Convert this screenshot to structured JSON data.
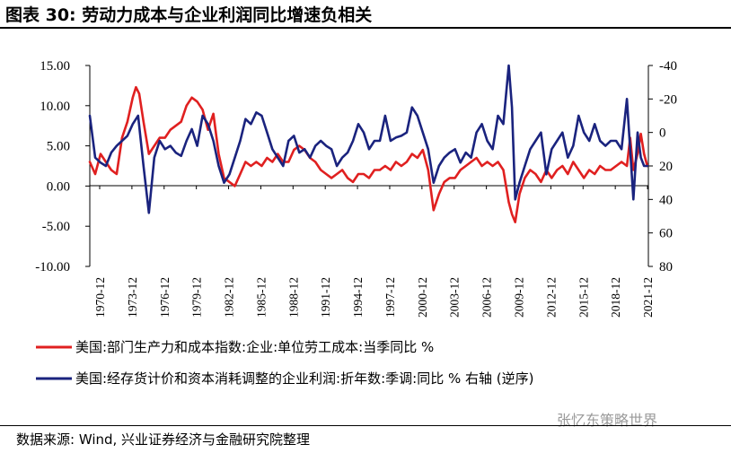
{
  "header": {
    "title": "图表 30: 劳动力成本与企业利润同比增速负相关"
  },
  "footer": {
    "source": "数据来源: Wind, 兴业证券经济与金融研究院整理",
    "watermark": "张忆东策略世界"
  },
  "colors": {
    "series1": "#e02020",
    "series2": "#1a237e",
    "axis": "#000000"
  },
  "chart_data": {
    "type": "line",
    "title": "劳动力成本与企业利润同比增速负相关",
    "left_axis": {
      "range": [
        -10,
        15
      ],
      "ticks": [
        "15.00",
        "10.00",
        "5.00",
        "0.00",
        "-5.00",
        "-10.00"
      ],
      "tick_values": [
        15,
        10,
        5,
        0,
        -5,
        -10
      ]
    },
    "right_axis": {
      "range": [
        80,
        -40
      ],
      "inverted": true,
      "ticks": [
        "-40",
        "-20",
        "0",
        "20",
        "40",
        "60",
        "80"
      ],
      "tick_values": [
        -40,
        -20,
        0,
        20,
        40,
        60,
        80
      ]
    },
    "x_range": [
      1970,
      2022
    ],
    "x_tick_labels": [
      "1970-12",
      "1973-12",
      "1976-12",
      "1979-12",
      "1982-12",
      "1985-12",
      "1988-12",
      "1991-12",
      "1994-12",
      "1997-12",
      "2000-12",
      "2003-12",
      "2006-12",
      "2009-12",
      "2012-12",
      "2015-12",
      "2018-12",
      "2021-12"
    ],
    "series": [
      {
        "name": "美国:部门生产力和成本指数:企业:单位劳工成本:当季同比 %",
        "axis": "left",
        "x": [
          1970,
          1970.5,
          1971,
          1971.5,
          1972,
          1972.5,
          1973,
          1973.5,
          1974,
          1974.3,
          1974.6,
          1975,
          1975.5,
          1976,
          1976.5,
          1977,
          1977.5,
          1978,
          1978.5,
          1979,
          1979.5,
          1980,
          1980.5,
          1981,
          1981.5,
          1982,
          1982.5,
          1983,
          1983.5,
          1984,
          1984.5,
          1985,
          1985.5,
          1986,
          1986.5,
          1987,
          1987.5,
          1988,
          1988.5,
          1989,
          1989.5,
          1990,
          1990.5,
          1991,
          1991.5,
          1992,
          1992.5,
          1993,
          1993.5,
          1994,
          1994.5,
          1995,
          1995.5,
          1996,
          1996.5,
          1997,
          1997.5,
          1998,
          1998.5,
          1999,
          1999.5,
          2000,
          2000.5,
          2001,
          2001.5,
          2002,
          2002.5,
          2003,
          2003.5,
          2004,
          2004.5,
          2005,
          2005.5,
          2006,
          2006.5,
          2007,
          2007.5,
          2008,
          2008.5,
          2009,
          2009.3,
          2009.6,
          2010,
          2010.5,
          2011,
          2011.5,
          2012,
          2012.5,
          2013,
          2013.5,
          2014,
          2014.5,
          2015,
          2015.5,
          2016,
          2016.5,
          2017,
          2017.5,
          2018,
          2018.5,
          2019,
          2019.5,
          2020,
          2020.3,
          2020.6,
          2021,
          2021.3,
          2021.6,
          2021.9
        ],
        "values": [
          3.0,
          1.5,
          4.0,
          3.0,
          2.0,
          1.5,
          6.0,
          8.0,
          11.0,
          12.3,
          11.5,
          8.0,
          4.0,
          5.0,
          6.0,
          6.0,
          7.0,
          7.5,
          8.0,
          10.0,
          11.0,
          10.5,
          9.5,
          7.0,
          9.0,
          4.0,
          1.0,
          0.5,
          0.0,
          1.5,
          3.0,
          2.5,
          3.0,
          2.5,
          3.5,
          3.0,
          4.0,
          3.0,
          3.0,
          4.5,
          5.0,
          4.5,
          3.5,
          3.0,
          2.0,
          1.5,
          1.0,
          1.5,
          2.0,
          1.0,
          0.5,
          1.5,
          1.5,
          1.0,
          2.0,
          2.0,
          2.5,
          2.0,
          3.0,
          2.5,
          3.0,
          4.0,
          3.5,
          4.5,
          2.0,
          -3.0,
          -1.0,
          0.5,
          1.0,
          1.0,
          2.0,
          2.5,
          3.0,
          3.5,
          2.5,
          3.0,
          2.5,
          3.0,
          2.0,
          -2.0,
          -3.5,
          -4.5,
          -1.0,
          1.0,
          2.0,
          1.5,
          0.5,
          2.0,
          1.0,
          2.0,
          2.5,
          1.5,
          3.0,
          2.0,
          1.0,
          2.0,
          1.5,
          2.5,
          2.0,
          2.0,
          2.5,
          3.0,
          2.5,
          6.0,
          2.0,
          4.0,
          6.5,
          4.0,
          2.5
        ]
      },
      {
        "name": "美国:经存货计价和资本消耗调整的企业利润:折年数:季调:同比 % 右轴 (逆序)",
        "axis": "right",
        "x": [
          1970,
          1970.5,
          1971,
          1971.5,
          1972,
          1972.5,
          1973,
          1973.5,
          1974,
          1974.5,
          1975,
          1975.5,
          1976,
          1976.5,
          1977,
          1977.5,
          1978,
          1978.5,
          1979,
          1979.5,
          1980,
          1980.5,
          1981,
          1981.5,
          1982,
          1982.5,
          1983,
          1983.5,
          1984,
          1984.5,
          1985,
          1985.5,
          1986,
          1986.5,
          1987,
          1987.5,
          1988,
          1988.5,
          1989,
          1989.5,
          1990,
          1990.5,
          1991,
          1991.5,
          1992,
          1992.5,
          1993,
          1993.5,
          1994,
          1994.5,
          1995,
          1995.5,
          1996,
          1996.5,
          1997,
          1997.5,
          1998,
          1998.5,
          1999,
          1999.5,
          2000,
          2000.5,
          2001,
          2001.5,
          2002,
          2002.5,
          2003,
          2003.5,
          2004,
          2004.5,
          2005,
          2005.5,
          2006,
          2006.5,
          2007,
          2007.5,
          2008,
          2008.5,
          2009,
          2009.3,
          2009.6,
          2010,
          2010.5,
          2011,
          2011.5,
          2012,
          2012.5,
          2013,
          2013.5,
          2014,
          2014.5,
          2015,
          2015.5,
          2016,
          2016.5,
          2017,
          2017.5,
          2018,
          2018.5,
          2019,
          2019.5,
          2020,
          2020.3,
          2020.6,
          2021,
          2021.3,
          2021.6,
          2021.9
        ],
        "values": [
          -10,
          15,
          18,
          20,
          12,
          8,
          5,
          2,
          -5,
          -10,
          20,
          48,
          15,
          5,
          10,
          8,
          12,
          14,
          5,
          -2,
          8,
          -10,
          -5,
          5,
          20,
          30,
          25,
          15,
          5,
          -8,
          -5,
          -12,
          -10,
          0,
          10,
          15,
          20,
          5,
          2,
          12,
          10,
          15,
          8,
          5,
          8,
          10,
          20,
          15,
          12,
          5,
          -5,
          0,
          10,
          5,
          5,
          -10,
          5,
          3,
          2,
          0,
          -15,
          -10,
          0,
          10,
          30,
          20,
          15,
          12,
          10,
          18,
          12,
          15,
          0,
          -5,
          5,
          10,
          -10,
          -5,
          -40,
          -15,
          40,
          30,
          20,
          10,
          5,
          0,
          25,
          10,
          5,
          0,
          15,
          8,
          -10,
          0,
          5,
          -5,
          5,
          8,
          5,
          5,
          10,
          -20,
          10,
          40,
          0,
          15,
          20,
          20
        ]
      }
    ]
  }
}
